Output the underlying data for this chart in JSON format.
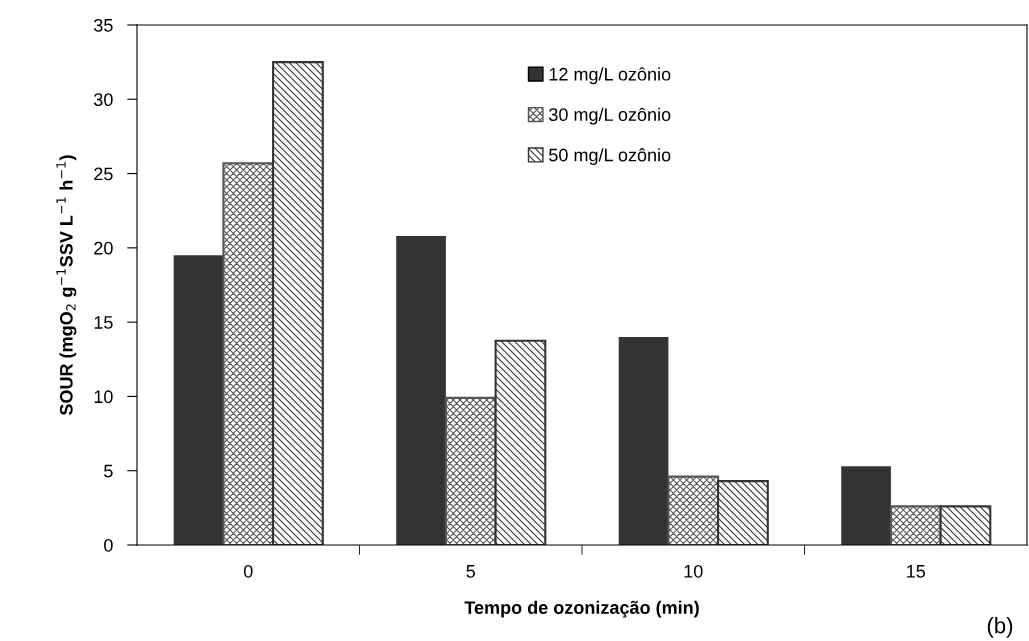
{
  "chart_data": {
    "type": "bar",
    "xlabel": "Tempo de ozonização (min)",
    "ylabel": "SOUR (mgO$_{2}$ g$^{−1}$SSV L$^{−1}$ h$^{−1}$)",
    "categories": [
      "0",
      "5",
      "10",
      "15"
    ],
    "series": [
      {
        "name": "12 mg/L ozônio",
        "color": "#333333",
        "values": [
          19.5,
          20.8,
          14.0,
          5.3
        ]
      },
      {
        "name": "30 mg/L ozônio",
        "color": "#555555",
        "values": [
          25.7,
          9.9,
          4.6,
          2.6
        ]
      },
      {
        "name": "50 mg/L ozônio",
        "color": "#333333",
        "values": [
          32.5,
          13.75,
          4.3,
          2.6
        ]
      }
    ],
    "ylim": [
      0,
      35
    ],
    "yticks": [
      0,
      5,
      10,
      15,
      20,
      25,
      30,
      35
    ],
    "grid": false,
    "legend": "top",
    "annotations": [
      "(b)"
    ]
  }
}
